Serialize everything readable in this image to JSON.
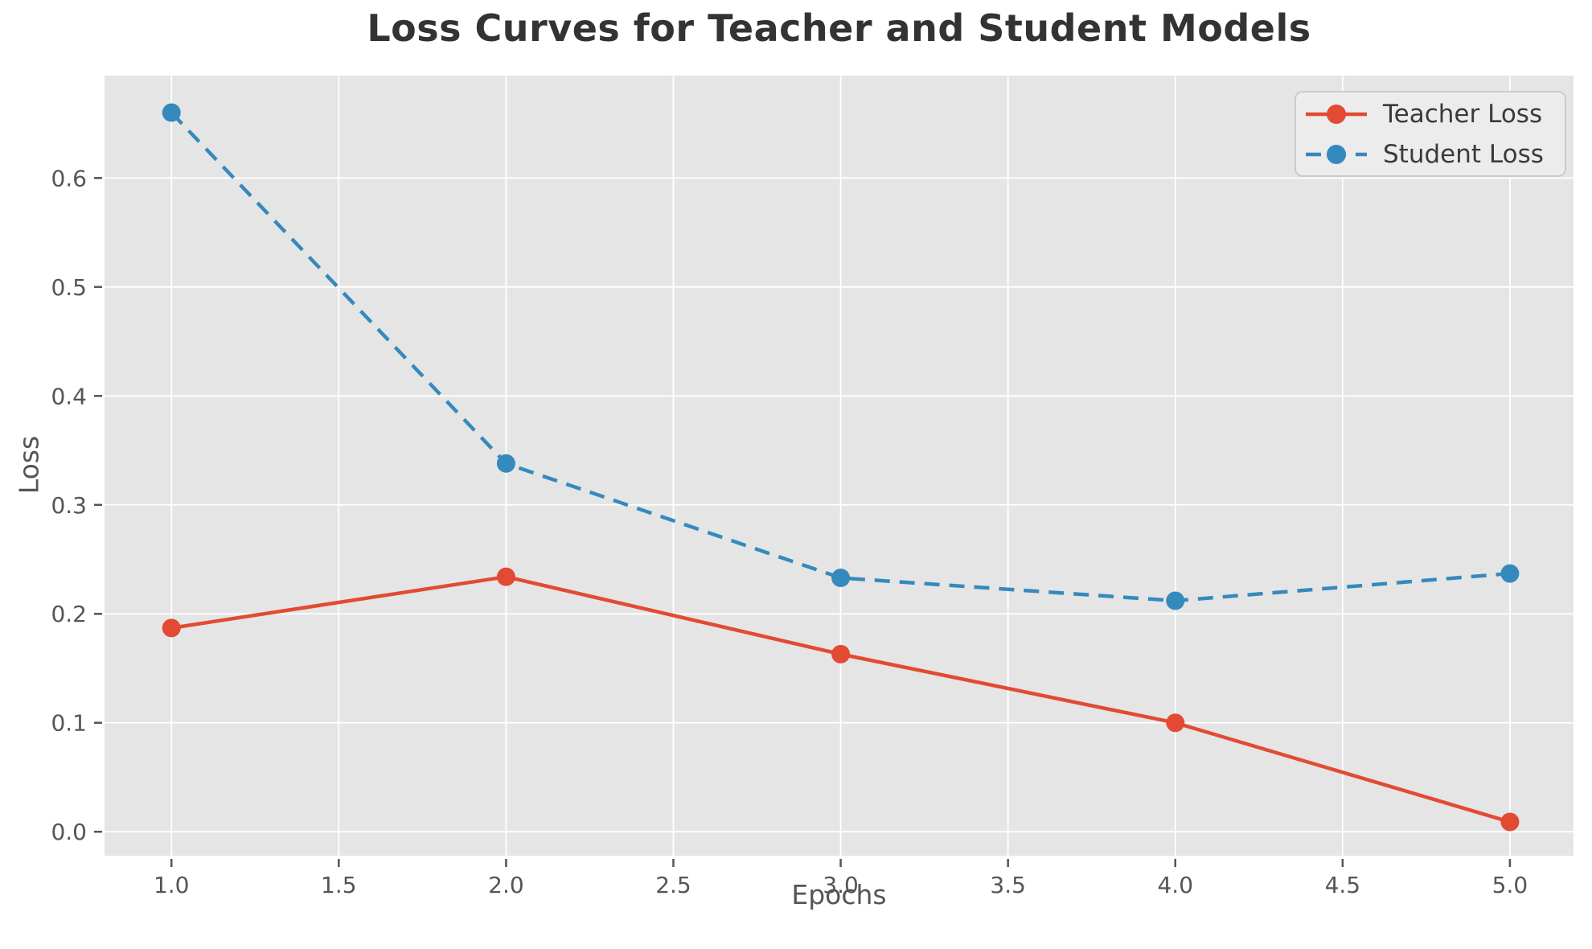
{
  "chart_data": {
    "type": "line",
    "title": "Loss Curves for Teacher and Student Models",
    "xlabel": "Epochs",
    "ylabel": "Loss",
    "x": [
      1,
      2,
      3,
      4,
      5
    ],
    "series": [
      {
        "name": "Teacher Loss",
        "values": [
          0.187,
          0.234,
          0.163,
          0.1,
          0.009
        ],
        "color": "#E24A33",
        "linestyle": "solid",
        "marker": "circle"
      },
      {
        "name": "Student Loss",
        "values": [
          0.66,
          0.338,
          0.233,
          0.212,
          0.237
        ],
        "color": "#348ABD",
        "linestyle": "dashed",
        "marker": "circle"
      }
    ],
    "xticks": [
      1.0,
      1.5,
      2.0,
      2.5,
      3.0,
      3.5,
      4.0,
      4.5,
      5.0
    ],
    "xtick_labels": [
      "1.0",
      "1.5",
      "2.0",
      "2.5",
      "3.0",
      "3.5",
      "4.0",
      "4.5",
      "5.0"
    ],
    "yticks": [
      0.0,
      0.1,
      0.2,
      0.3,
      0.4,
      0.5,
      0.6
    ],
    "ytick_labels": [
      "0.0",
      "0.1",
      "0.2",
      "0.3",
      "0.4",
      "0.5",
      "0.6"
    ],
    "xlim": [
      0.8,
      5.19
    ],
    "ylim": [
      -0.022,
      0.694
    ],
    "grid": true,
    "legend_position": "upper right",
    "colors": {
      "plot_bg": "#E5E5E5",
      "grid": "#FFFFFF",
      "tick": "#555555",
      "title_text": "#333333",
      "legend_text": "#3A3A3A"
    }
  }
}
